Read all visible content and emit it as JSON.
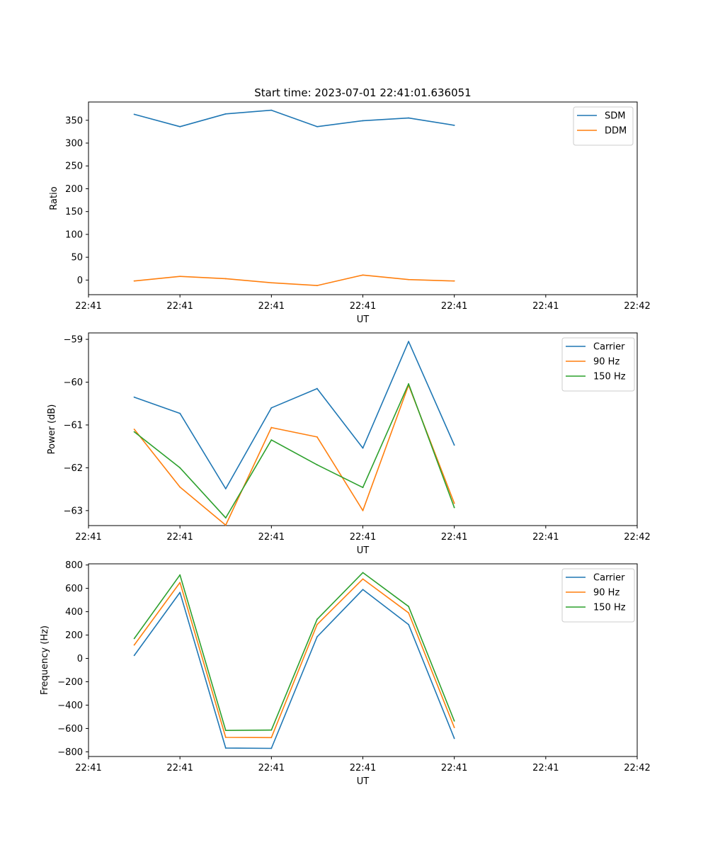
{
  "figure": {
    "title": "Start time: 2023-07-01 22:41:01.636051"
  },
  "chart_data": [
    {
      "type": "line",
      "title": "Start time: 2023-07-01 22:41:01.636051",
      "xlabel": "UT",
      "ylabel": "Ratio",
      "xlim": [
        0,
        12
      ],
      "ylim": [
        -32,
        390
      ],
      "x": [
        1,
        2,
        3,
        4,
        5,
        6,
        7,
        8
      ],
      "xticks": [
        0,
        2,
        4,
        6,
        8,
        10,
        12
      ],
      "xtick_labels": [
        "22:41",
        "22:41",
        "22:41",
        "22:41",
        "22:41",
        "22:41",
        "22:42"
      ],
      "yticks": [
        0,
        50,
        100,
        150,
        200,
        250,
        300,
        350
      ],
      "ytick_labels": [
        "0",
        "50",
        "100",
        "150",
        "200",
        "250",
        "300",
        "350"
      ],
      "legend_position": "top-right",
      "series": [
        {
          "name": "SDM",
          "color": "#1f77b4",
          "values": [
            363,
            336,
            364,
            372,
            336,
            349,
            355,
            339
          ]
        },
        {
          "name": "DDM",
          "color": "#ff7f0e",
          "values": [
            -2,
            8,
            3,
            -6,
            -12,
            11,
            1,
            -2
          ]
        }
      ]
    },
    {
      "type": "line",
      "title": "",
      "xlabel": "UT",
      "ylabel": "Power (dB)",
      "xlim": [
        0,
        12
      ],
      "ylim": [
        -63.35,
        -58.85
      ],
      "x": [
        1,
        2,
        3,
        4,
        5,
        6,
        7,
        8
      ],
      "xticks": [
        0,
        2,
        4,
        6,
        8,
        10,
        12
      ],
      "xtick_labels": [
        "22:41",
        "22:41",
        "22:41",
        "22:41",
        "22:41",
        "22:41",
        "22:42"
      ],
      "yticks": [
        -63,
        -62,
        -61,
        -60,
        -59
      ],
      "ytick_labels": [
        "−63",
        "−62",
        "−61",
        "−60",
        "−59"
      ],
      "legend_position": "top-right",
      "series": [
        {
          "name": "Carrier",
          "color": "#1f77b4",
          "values": [
            -60.35,
            -60.73,
            -62.49,
            -60.6,
            -60.15,
            -61.54,
            -59.05,
            -61.47
          ]
        },
        {
          "name": "90 Hz",
          "color": "#ff7f0e",
          "values": [
            -61.1,
            -62.45,
            -63.34,
            -61.06,
            -61.28,
            -63.0,
            -60.07,
            -62.83
          ]
        },
        {
          "name": "150 Hz",
          "color": "#2ca02c",
          "values": [
            -61.16,
            -62.0,
            -63.17,
            -61.35,
            -61.93,
            -62.46,
            -60.04,
            -62.93
          ]
        }
      ]
    },
    {
      "type": "line",
      "title": "",
      "xlabel": "UT",
      "ylabel": "Frequency (Hz)",
      "xlim": [
        0,
        12
      ],
      "ylim": [
        -840,
        810
      ],
      "x": [
        1,
        2,
        3,
        4,
        5,
        6,
        7,
        8
      ],
      "xticks": [
        0,
        2,
        4,
        6,
        8,
        10,
        12
      ],
      "xtick_labels": [
        "22:41",
        "22:41",
        "22:41",
        "22:41",
        "22:41",
        "22:41",
        "22:42"
      ],
      "yticks": [
        -800,
        -600,
        -400,
        -200,
        0,
        200,
        400,
        600,
        800
      ],
      "ytick_labels": [
        "−800",
        "−600",
        "−400",
        "−200",
        "0",
        "200",
        "400",
        "600",
        "800"
      ],
      "legend_position": "top-right",
      "series": [
        {
          "name": "Carrier",
          "color": "#1f77b4",
          "values": [
            25,
            565,
            -768,
            -770,
            185,
            590,
            290,
            -685
          ]
        },
        {
          "name": "90 Hz",
          "color": "#ff7f0e",
          "values": [
            115,
            650,
            -676,
            -678,
            290,
            680,
            390,
            -592
          ]
        },
        {
          "name": "150 Hz",
          "color": "#2ca02c",
          "values": [
            170,
            715,
            -617,
            -614,
            335,
            735,
            445,
            -536
          ]
        }
      ]
    }
  ]
}
